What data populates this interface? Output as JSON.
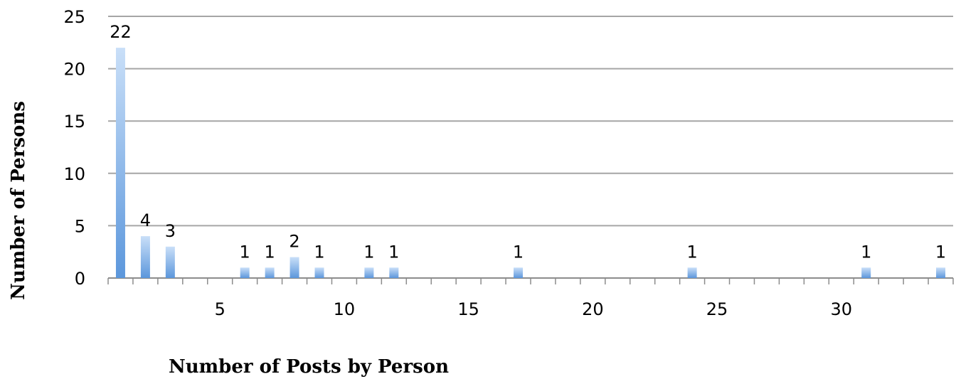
{
  "chart_data": {
    "type": "bar",
    "title": "",
    "xlabel": "Number of Posts by Person",
    "ylabel": "Number of Persons",
    "x": [
      1,
      2,
      3,
      6,
      7,
      8,
      9,
      11,
      12,
      17,
      24,
      31,
      34
    ],
    "values": [
      22,
      4,
      3,
      1,
      1,
      2,
      1,
      1,
      1,
      1,
      1,
      1,
      1
    ],
    "data_labels": [
      "22",
      "4",
      "3",
      "1",
      "1",
      "2",
      "1",
      "1",
      "1",
      "1",
      "1",
      "1",
      "1"
    ],
    "xlim": [
      0.5,
      34.5
    ],
    "ylim": [
      0,
      25
    ],
    "x_ticks": [
      5,
      10,
      15,
      20,
      25,
      30
    ],
    "x_tick_labels": [
      "5",
      "10",
      "15",
      "20",
      "25",
      "30"
    ],
    "y_ticks": [
      0,
      5,
      10,
      15,
      20,
      25
    ],
    "y_tick_labels": [
      "0",
      "5",
      "10",
      "15",
      "20",
      "25"
    ],
    "grid": true,
    "bar_color": "#6aa4e6",
    "grid_color": "#a6a6a6"
  }
}
